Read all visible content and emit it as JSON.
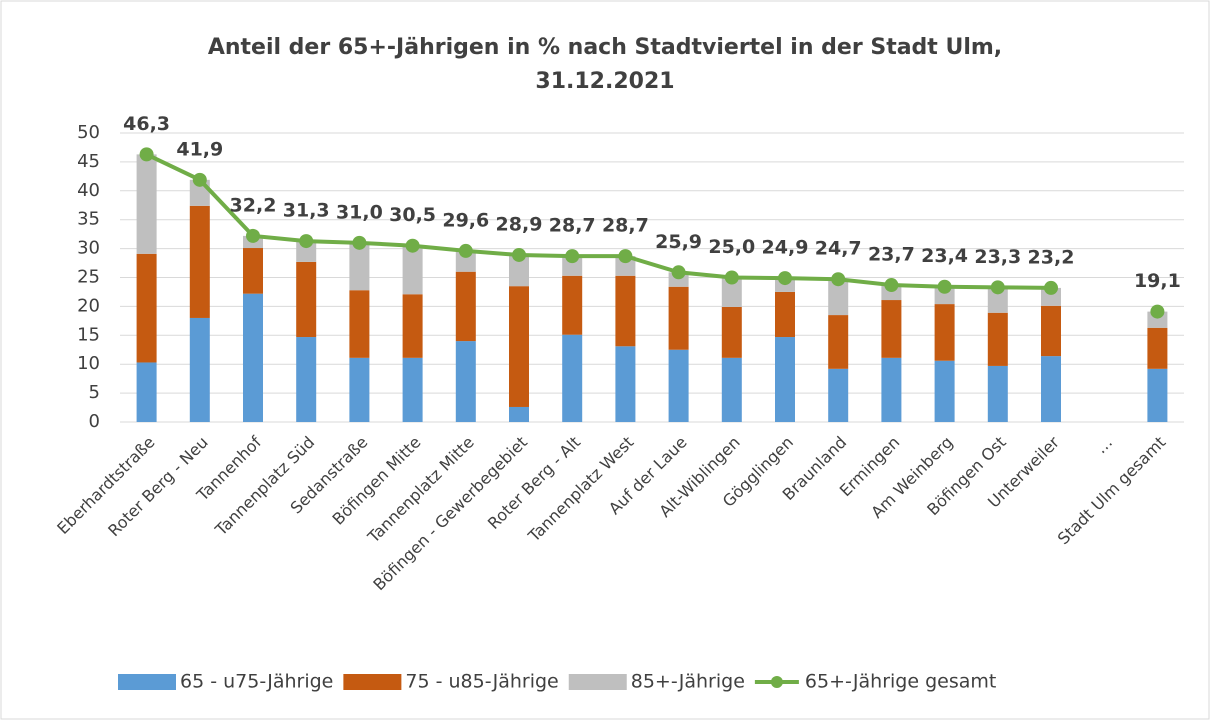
{
  "chart_data": {
    "type": "stacked-bar-line",
    "title": "Anteil der 65+-Jährigen in % nach Stadtviertel in der Stadt Ulm,",
    "subtitle": "31.12.2021",
    "categories": [
      "Eberhardtstraße",
      "Roter Berg - Neu",
      "Tannenhof",
      "Tannenplatz Süd",
      "Sedanstraße",
      "Böfingen Mitte",
      "Tannenplatz Mitte",
      "Böfingen - Gewerbegebiet",
      "Roter Berg - Alt",
      "Tannenplatz West",
      "Auf der Laue",
      "Alt-Wiblingen",
      "Gögglingen",
      "Braunland",
      "Ermingen",
      "Am Weinberg",
      "Böfingen Ost",
      "Unterweiler",
      "…",
      "Stadt Ulm gesamt"
    ],
    "series": [
      {
        "name": "65 - u75-Jährige",
        "color": "#5b9bd5",
        "values": [
          10.3,
          18.0,
          22.2,
          14.7,
          11.1,
          11.1,
          14.0,
          2.6,
          15.1,
          13.1,
          12.5,
          11.1,
          14.7,
          9.2,
          11.1,
          10.6,
          9.7,
          11.4,
          null,
          9.2
        ]
      },
      {
        "name": "75 - u85-Jährige",
        "color": "#c55a11",
        "values": [
          18.8,
          19.4,
          7.9,
          13.0,
          11.7,
          11.0,
          12.0,
          20.9,
          10.2,
          12.2,
          10.9,
          8.8,
          7.8,
          9.3,
          10.0,
          9.8,
          9.2,
          8.7,
          null,
          7.1
        ]
      },
      {
        "name": "85+-Jährige",
        "color": "#bfbfbf",
        "values": [
          17.2,
          4.5,
          2.1,
          3.6,
          8.2,
          8.4,
          3.6,
          5.4,
          3.4,
          3.4,
          2.5,
          5.1,
          2.4,
          6.2,
          2.6,
          3.0,
          4.4,
          3.1,
          null,
          2.8
        ]
      },
      {
        "name": "65+-Jährige gesamt",
        "color": "#70ad47",
        "type": "line",
        "values": [
          46.3,
          41.9,
          32.2,
          31.3,
          31.0,
          30.5,
          29.6,
          28.9,
          28.7,
          28.7,
          25.9,
          25.0,
          24.9,
          24.7,
          23.7,
          23.4,
          23.3,
          23.2,
          null,
          19.1
        ],
        "value_labels": [
          "46,3",
          "41,9",
          "32,2",
          "31,3",
          "31,0",
          "30,5",
          "29,6",
          "28,9",
          "28,7",
          "28,7",
          "25,9",
          "25,0",
          "24,9",
          "24,7",
          "23,7",
          "23,4",
          "23,3",
          "23,2",
          null,
          "19,1"
        ]
      }
    ],
    "ylim": [
      0,
      50
    ],
    "yticks": [
      0,
      5,
      10,
      15,
      20,
      25,
      30,
      35,
      40,
      45,
      50
    ],
    "grid": true,
    "legend": "bottom"
  }
}
